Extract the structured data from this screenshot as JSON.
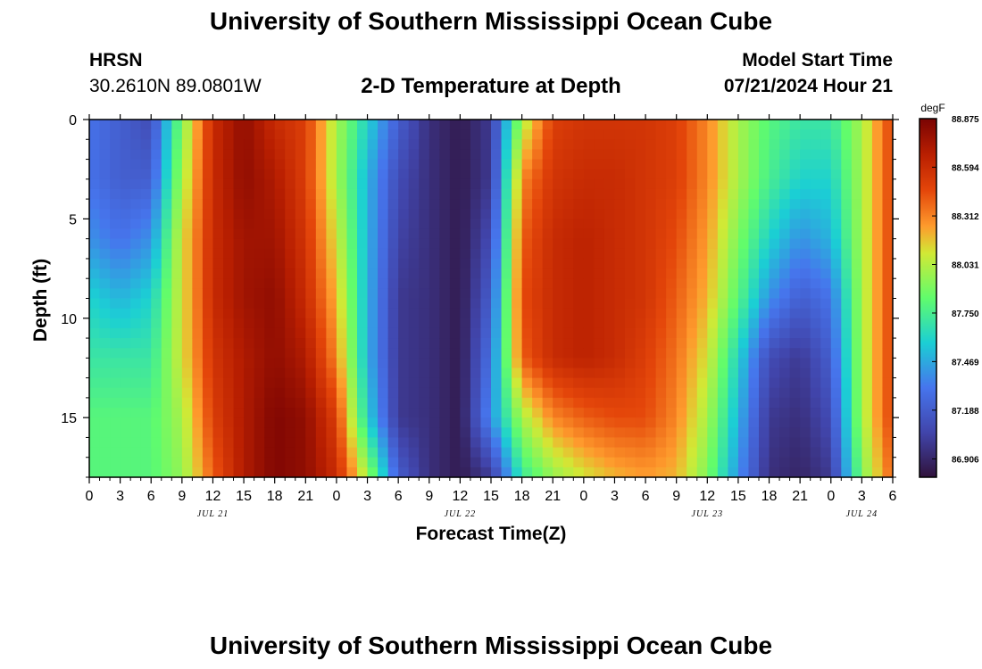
{
  "header": {
    "title": "University of Southern Mississippi Ocean Cube",
    "station": "HRSN",
    "coords": "30.2610N  89.0801W",
    "plot_title": "2-D Temperature at Depth",
    "model_label": "Model Start Time",
    "model_time": "07/21/2024 Hour 21"
  },
  "footer": {
    "title": "University of Southern Mississippi Ocean Cube"
  },
  "chart_data": {
    "type": "heatmap",
    "title": "2-D Temperature at Depth",
    "xlabel": "Forecast Time(Z)",
    "ylabel": "Depth (ft)",
    "x_range_hours": [
      0,
      78
    ],
    "x_start": "07/21 00Z",
    "x_ticks": [
      "0",
      "3",
      "6",
      "9",
      "12",
      "15",
      "18",
      "21",
      "0",
      "3",
      "6",
      "9",
      "12",
      "15",
      "18",
      "21",
      "0",
      "3",
      "6",
      "9",
      "12",
      "15",
      "18",
      "21",
      "0",
      "3",
      "6"
    ],
    "date_labels": [
      {
        "label": "JUL 21",
        "hour": 12
      },
      {
        "label": "JUL 22",
        "hour": 36
      },
      {
        "label": "JUL 23",
        "hour": 60
      },
      {
        "label": "JUL 24",
        "hour": 75
      }
    ],
    "y_ticks": [
      0,
      5,
      10,
      15
    ],
    "ylim": [
      18,
      0
    ],
    "colorbar": {
      "unit": "degF",
      "min": 86.8,
      "max": 88.875,
      "labels": [
        "88.875",
        "88.594",
        "88.312",
        "88.031",
        "87.750",
        "87.469",
        "87.188",
        "86.906"
      ]
    },
    "time_hours": [
      0,
      3,
      6,
      9,
      12,
      15,
      18,
      21,
      24,
      27,
      30,
      33,
      36,
      39,
      42,
      45,
      48,
      51,
      54,
      57,
      60,
      63,
      66,
      69,
      72,
      75,
      78
    ],
    "depth_ft": [
      0,
      3,
      6,
      9,
      12,
      15,
      18
    ],
    "values": [
      [
        87.3,
        87.2,
        87.1,
        87.9,
        88.6,
        88.8,
        88.6,
        88.5,
        88.0,
        87.6,
        87.2,
        86.95,
        86.85,
        87.0,
        88.0,
        88.5,
        88.55,
        88.55,
        88.55,
        88.5,
        88.3,
        88.0,
        87.8,
        87.7,
        87.7,
        88.0,
        88.5
      ],
      [
        87.3,
        87.2,
        87.2,
        88.0,
        88.6,
        88.8,
        88.7,
        88.5,
        88.0,
        87.5,
        87.1,
        86.95,
        86.85,
        87.0,
        88.3,
        88.55,
        88.6,
        88.6,
        88.55,
        88.5,
        88.3,
        88.0,
        87.75,
        87.6,
        87.6,
        88.0,
        88.5
      ],
      [
        87.4,
        87.3,
        87.4,
        88.1,
        88.6,
        88.75,
        88.75,
        88.55,
        88.1,
        87.5,
        87.05,
        86.95,
        86.85,
        87.1,
        88.4,
        88.6,
        88.65,
        88.6,
        88.55,
        88.45,
        88.25,
        87.9,
        87.6,
        87.4,
        87.5,
        88.0,
        88.5
      ],
      [
        87.6,
        87.5,
        87.6,
        88.1,
        88.6,
        88.75,
        88.8,
        88.6,
        88.2,
        87.5,
        87.0,
        86.95,
        86.85,
        87.2,
        88.45,
        88.6,
        88.65,
        88.6,
        88.55,
        88.4,
        88.2,
        87.8,
        87.4,
        87.2,
        87.3,
        88.0,
        88.5
      ],
      [
        87.7,
        87.7,
        87.7,
        88.1,
        88.55,
        88.7,
        88.8,
        88.7,
        88.3,
        87.5,
        87.0,
        86.95,
        86.85,
        87.3,
        88.4,
        88.6,
        88.65,
        88.6,
        88.5,
        88.35,
        88.1,
        87.6,
        87.1,
        87.0,
        87.2,
        88.0,
        88.5
      ],
      [
        87.8,
        87.8,
        87.8,
        88.0,
        88.5,
        88.7,
        88.85,
        88.8,
        88.5,
        87.6,
        87.0,
        86.95,
        86.85,
        87.4,
        88.0,
        88.3,
        88.4,
        88.45,
        88.45,
        88.3,
        88.0,
        87.5,
        87.0,
        86.95,
        87.1,
        88.0,
        88.5
      ],
      [
        87.8,
        87.8,
        87.8,
        87.95,
        88.4,
        88.7,
        88.85,
        88.8,
        88.6,
        88.0,
        87.2,
        86.95,
        86.85,
        87.0,
        87.7,
        87.95,
        88.1,
        88.2,
        88.25,
        88.2,
        87.9,
        87.4,
        86.95,
        86.9,
        87.0,
        87.9,
        88.4
      ]
    ]
  }
}
